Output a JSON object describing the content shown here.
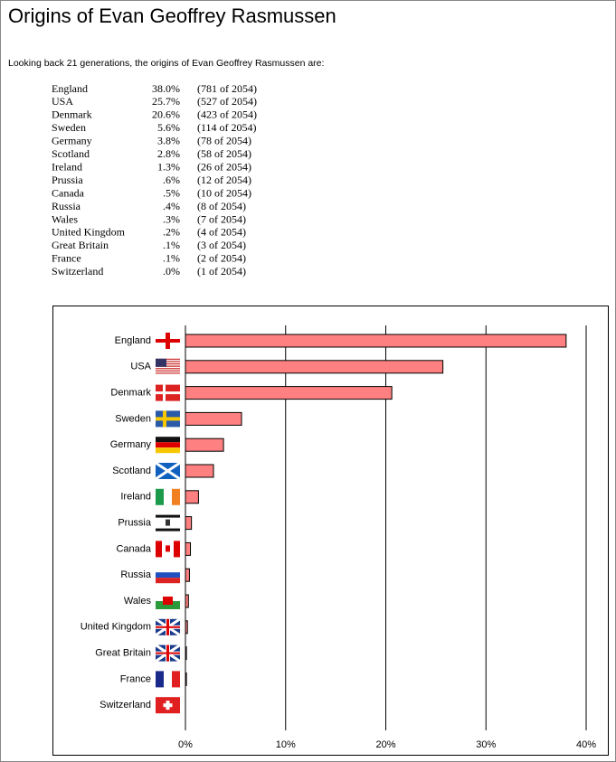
{
  "title": "Origins of Evan Geoffrey Rasmussen",
  "intro": "Looking back 21 generations, the origins of Evan Geoffrey Rasmussen are:",
  "table": {
    "rows": [
      [
        "England",
        "38.0%",
        "(781 of 2054)"
      ],
      [
        "USA",
        "25.7%",
        "(527 of 2054)"
      ],
      [
        "Denmark",
        "20.6%",
        "(423 of 2054)"
      ],
      [
        "Sweden",
        "5.6%",
        "(114 of 2054)"
      ],
      [
        "Germany",
        "3.8%",
        "(78 of 2054)"
      ],
      [
        "Scotland",
        "2.8%",
        "(58 of 2054)"
      ],
      [
        "Ireland",
        "1.3%",
        "(26 of 2054)"
      ],
      [
        "Prussia",
        ".6%",
        "(12 of 2054)"
      ],
      [
        "Canada",
        ".5%",
        "(10 of 2054)"
      ],
      [
        "Russia",
        ".4%",
        "(8 of 2054)"
      ],
      [
        "Wales",
        ".3%",
        "(7 of 2054)"
      ],
      [
        "United Kingdom",
        ".2%",
        "(4 of 2054)"
      ],
      [
        "Great Britain",
        ".1%",
        "(3 of 2054)"
      ],
      [
        "France",
        ".1%",
        "(2 of 2054)"
      ],
      [
        "Switzerland",
        ".0%",
        "(1 of 2054)"
      ]
    ]
  },
  "chart_data": {
    "type": "hbar",
    "categories": [
      "England",
      "USA",
      "Denmark",
      "Sweden",
      "Germany",
      "Scotland",
      "Ireland",
      "Prussia",
      "Canada",
      "Russia",
      "Wales",
      "United Kingdom",
      "Great Britain",
      "France",
      "Switzerland"
    ],
    "values": [
      38.0,
      25.7,
      20.6,
      5.6,
      3.8,
      2.8,
      1.3,
      0.6,
      0.5,
      0.4,
      0.3,
      0.2,
      0.1,
      0.1,
      0.0
    ],
    "color": "#ff8080",
    "xlim": [
      0,
      40
    ],
    "xticks": [
      {
        "value": 0,
        "label": "0%"
      },
      {
        "value": 10,
        "label": "10%"
      },
      {
        "value": 20,
        "label": "20%"
      },
      {
        "value": 30,
        "label": "30%"
      },
      {
        "value": 40,
        "label": "40%"
      }
    ],
    "grid": true
  }
}
